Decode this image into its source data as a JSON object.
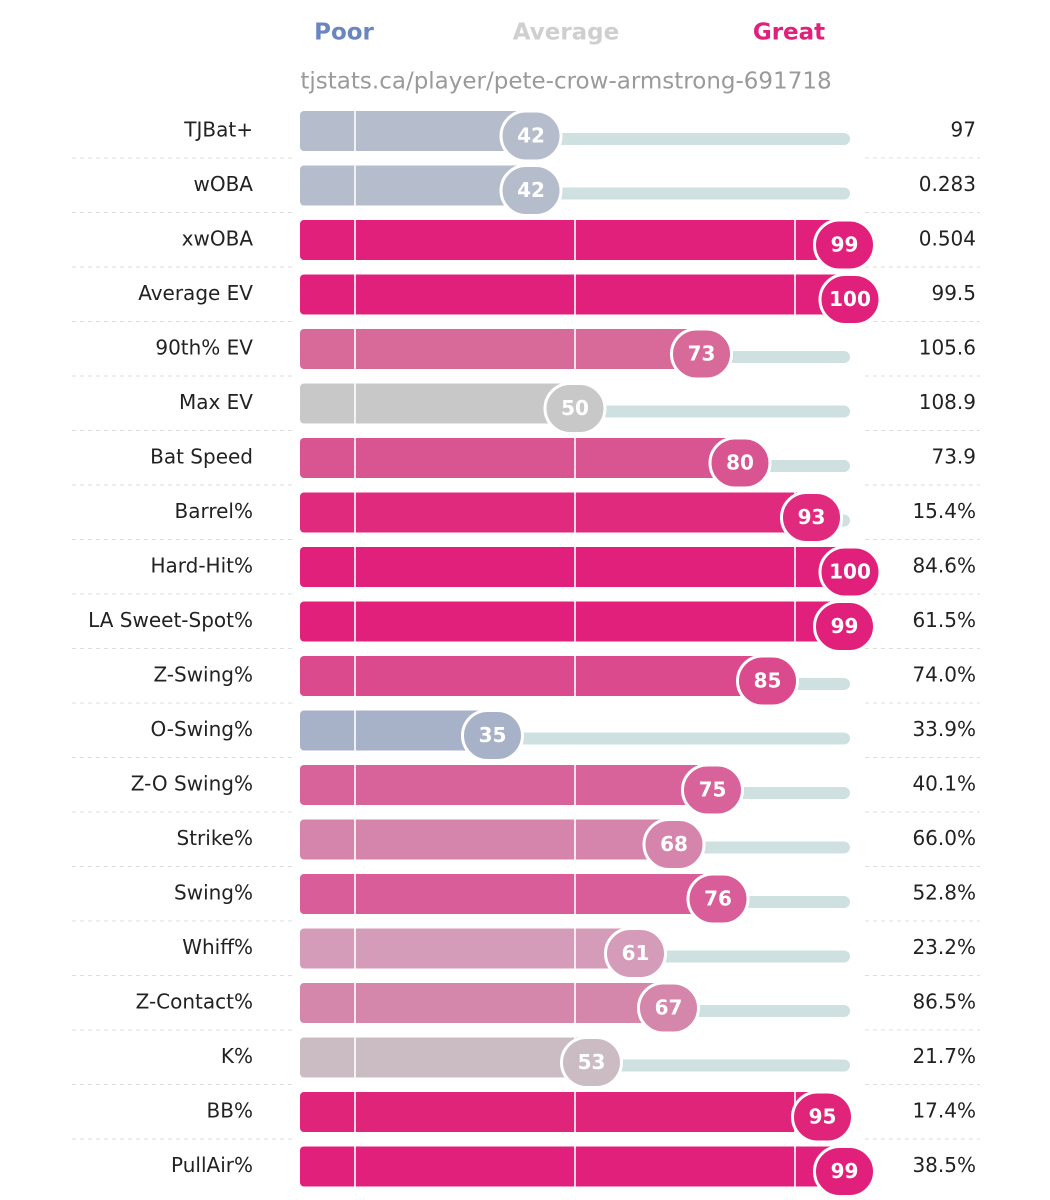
{
  "chart_data": {
    "type": "percentile",
    "legend": [
      {
        "name": "Poor",
        "color": "#6a86c0"
      },
      {
        "name": "Average",
        "color": "#cfcfcf"
      },
      {
        "name": "Great",
        "color": "#e0207a"
      }
    ],
    "subtitle": "tjstats.ca/player/pete-crow-armstrong-691718",
    "categories": [
      "TJBat+",
      "wOBA",
      "xwOBA",
      "Average EV",
      "90th% EV",
      "Max EV",
      "Bat Speed",
      "Barrel%",
      "Hard-Hit%",
      "LA Sweet-Spot%",
      "Z-Swing%",
      "O-Swing%",
      "Z-O Swing%",
      "Strike%",
      "Swing%",
      "Whiff%",
      "Z-Contact%",
      "K%",
      "BB%",
      "PullAir%"
    ],
    "values": [
      42,
      42,
      99,
      100,
      73,
      50,
      80,
      93,
      100,
      99,
      85,
      35,
      75,
      68,
      76,
      61,
      67,
      53,
      95,
      99
    ],
    "stats": [
      "97",
      "0.283",
      "0.504",
      "99.5",
      "105.6",
      "108.9",
      "73.9",
      "15.4%",
      "84.6%",
      "61.5%",
      "74.0%",
      "33.9%",
      "40.1%",
      "66.0%",
      "52.8%",
      "23.2%",
      "86.5%",
      "21.7%",
      "17.4%",
      "38.5%"
    ],
    "colors": [
      "#b5bccb",
      "#b5bccb",
      "#e0207a",
      "#e0207a",
      "#d86a9a",
      "#c8c8c8",
      "#d85592",
      "#e02a7e",
      "#e0207a",
      "#e0207a",
      "#da4a8c",
      "#a7b2c9",
      "#d7639a",
      "#d585ab",
      "#d85d98",
      "#d59cb9",
      "#d486ab",
      "#cbbcc4",
      "#e02479",
      "#e0207a"
    ],
    "track_color": "#cfe0e0",
    "xlim": [
      0,
      100
    ],
    "gridlines": [
      10,
      50,
      90
    ]
  }
}
